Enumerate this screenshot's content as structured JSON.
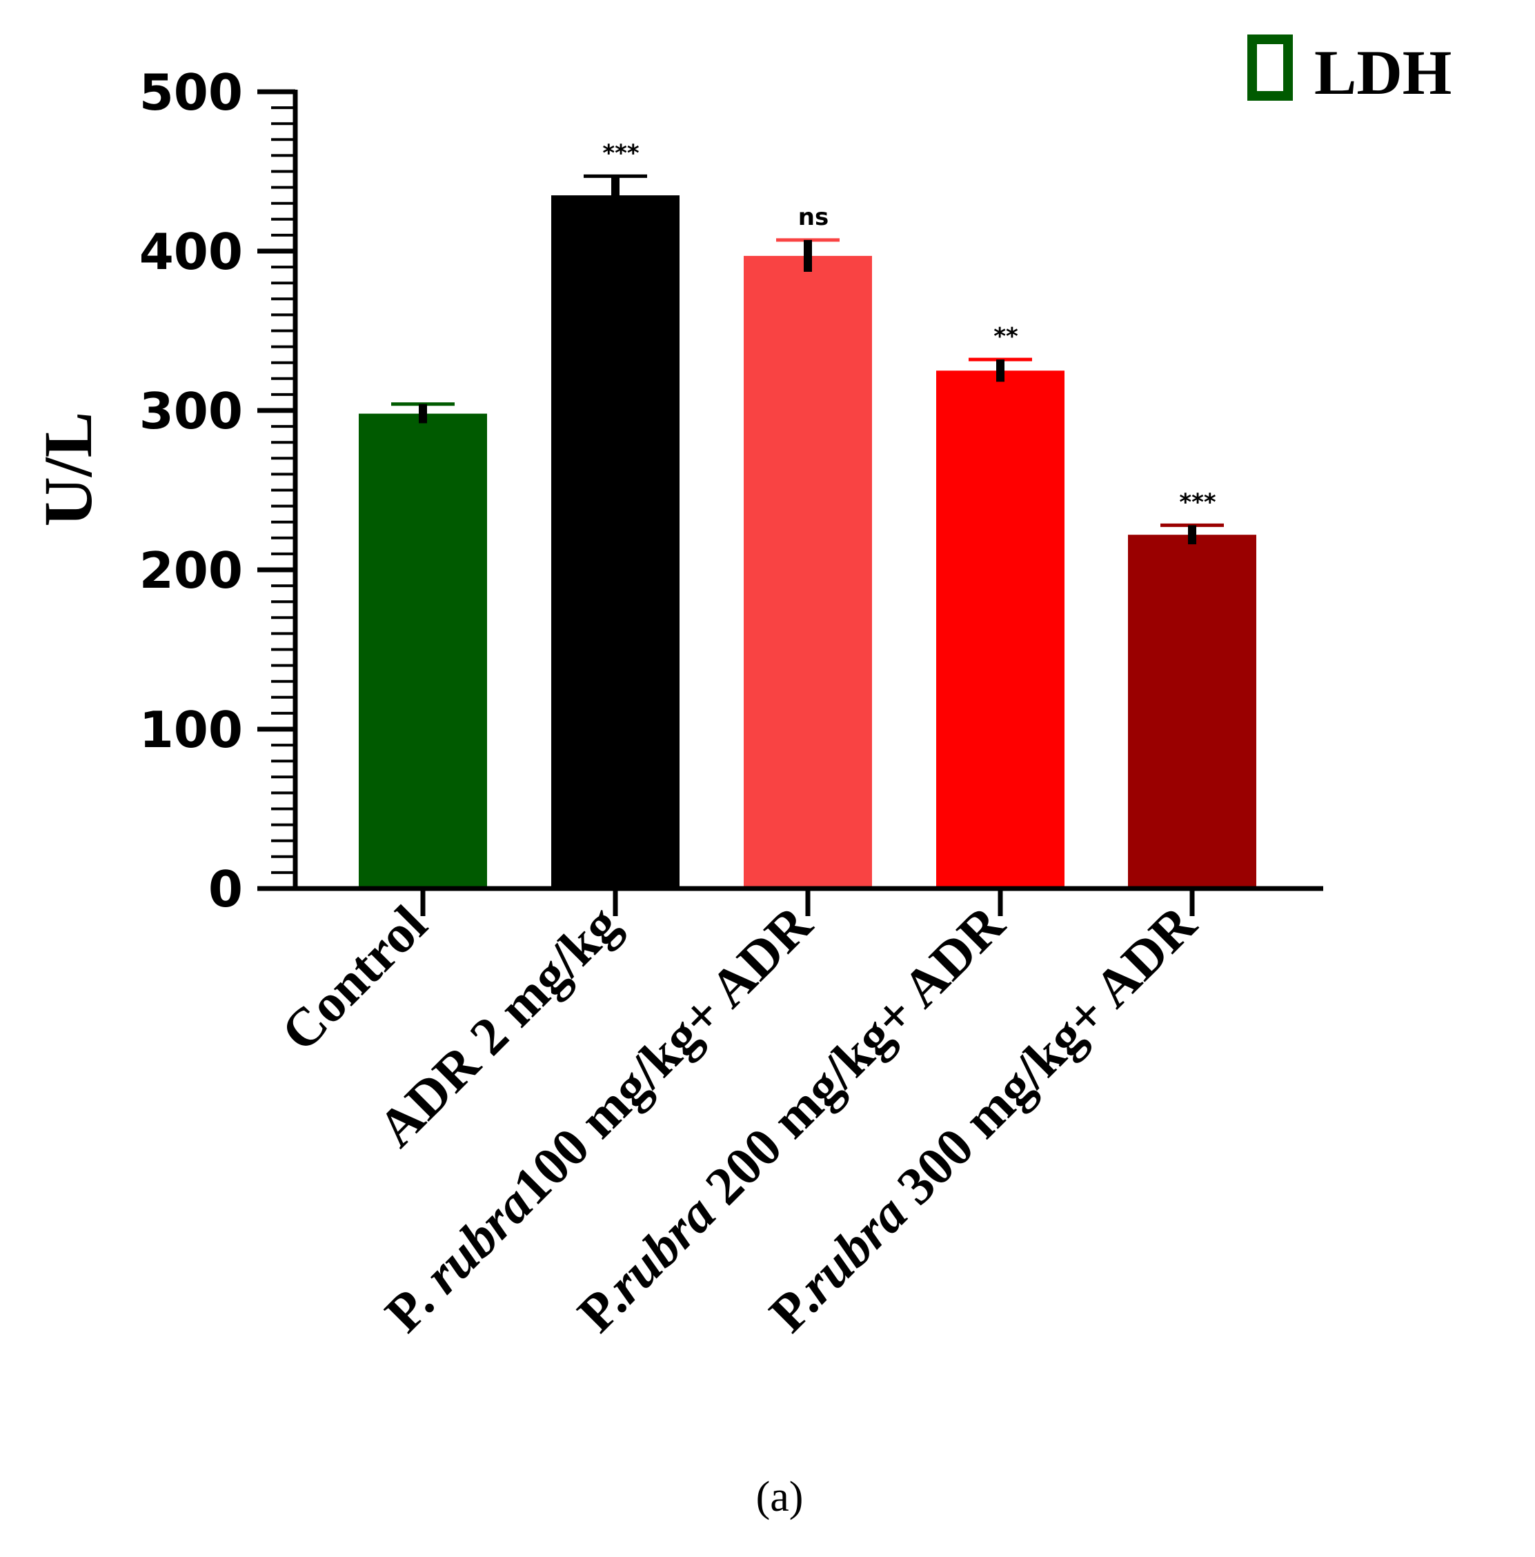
{
  "chart_data": {
    "type": "bar",
    "ylabel": "U/L",
    "ylim": [
      0,
      500
    ],
    "yticks": [
      "0",
      "100",
      "200",
      "300",
      "400",
      "500"
    ],
    "categories": [
      {
        "prefix": "",
        "italic": "",
        "suffix": "Control"
      },
      {
        "prefix": "",
        "italic": "",
        "suffix": "ADR 2 mg/kg"
      },
      {
        "prefix": "P. ",
        "italic": "rubra",
        "suffix": "100 mg/kg+ ADR"
      },
      {
        "prefix": "P.",
        "italic": "rubra",
        "suffix": " 200 mg/kg+ ADR"
      },
      {
        "prefix": "P.",
        "italic": "rubra",
        "suffix": " 300 mg/kg+ ADR"
      }
    ],
    "series": [
      {
        "name": "LDH",
        "values": [
          298,
          435,
          397,
          325,
          222
        ],
        "errors": [
          6,
          12,
          10,
          7,
          6
        ],
        "colors": [
          "#005a00",
          "#000000",
          "#f94343",
          "#ff0000",
          "#9a0000"
        ],
        "significance": [
          "",
          "***",
          "ns",
          "**",
          "***"
        ]
      }
    ],
    "legend": {
      "label": "LDH",
      "position": "top-right",
      "color": "#005a00"
    },
    "caption": "(a)"
  }
}
